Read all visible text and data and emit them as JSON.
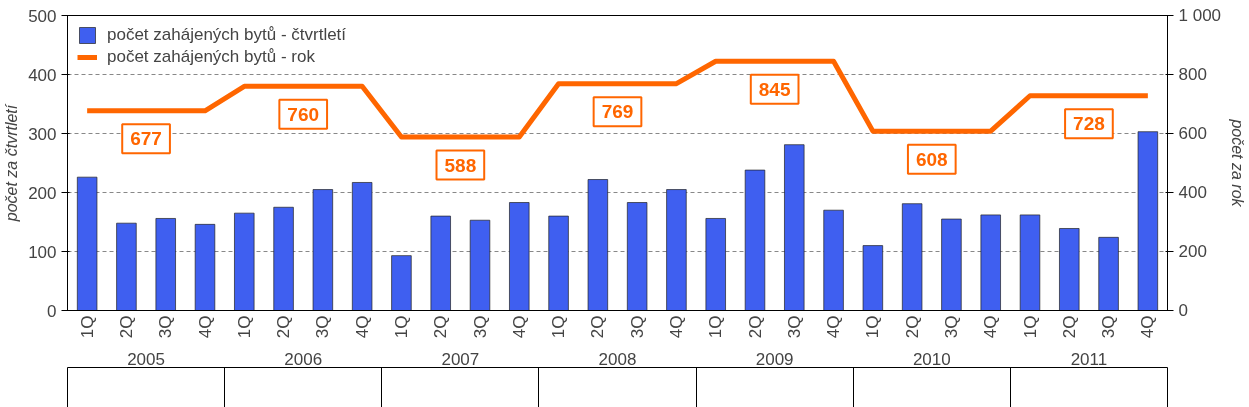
{
  "chart_data": {
    "type": "bar",
    "categories": [
      "1Q",
      "2Q",
      "3Q",
      "4Q",
      "1Q",
      "2Q",
      "3Q",
      "4Q",
      "1Q",
      "2Q",
      "3Q",
      "4Q",
      "1Q",
      "2Q",
      "3Q",
      "4Q",
      "1Q",
      "2Q",
      "3Q",
      "4Q",
      "1Q",
      "2Q",
      "3Q",
      "4Q",
      "1Q",
      "2Q",
      "3Q",
      "4Q"
    ],
    "annotations": [
      "2005",
      "2006",
      "2007",
      "2008",
      "2009",
      "2010",
      "2011"
    ],
    "ylabel": "počet za čtvrtletí",
    "y2label": "počet za rok",
    "ylim": [
      0,
      500
    ],
    "yticks": [
      0,
      100,
      200,
      300,
      400,
      500
    ],
    "y2lim": [
      0,
      1000
    ],
    "y2ticks": [
      0,
      200,
      400,
      600,
      800,
      {
        "value": 1000,
        "label": "1 000"
      }
    ],
    "grid": "y",
    "legend": "top left",
    "series": [
      {
        "name": "počet zahájených bytů - čtvrtletí",
        "color": "#3f5ff0",
        "values": [
          226,
          148,
          156,
          146,
          165,
          175,
          205,
          217,
          93,
          160,
          153,
          183,
          160,
          222,
          183,
          205,
          156,
          238,
          281,
          170,
          110,
          181,
          155,
          162,
          162,
          139,
          124,
          303
        ]
      },
      {
        "name": "počet zahájených bytů - rok",
        "type": "line",
        "axis": "y2",
        "color": "#ff6600",
        "values": [
          677,
          677,
          677,
          677,
          760,
          760,
          760,
          760,
          588,
          588,
          588,
          588,
          769,
          769,
          769,
          769,
          845,
          845,
          845,
          845,
          608,
          608,
          608,
          608,
          728,
          728,
          728,
          728
        ],
        "value_labels": [
          null,
          "677",
          null,
          null,
          null,
          "760",
          null,
          null,
          null,
          "588",
          null,
          null,
          null,
          "769",
          null,
          null,
          null,
          "845",
          null,
          null,
          null,
          "608",
          null,
          null,
          null,
          "728",
          null,
          null
        ]
      }
    ]
  }
}
